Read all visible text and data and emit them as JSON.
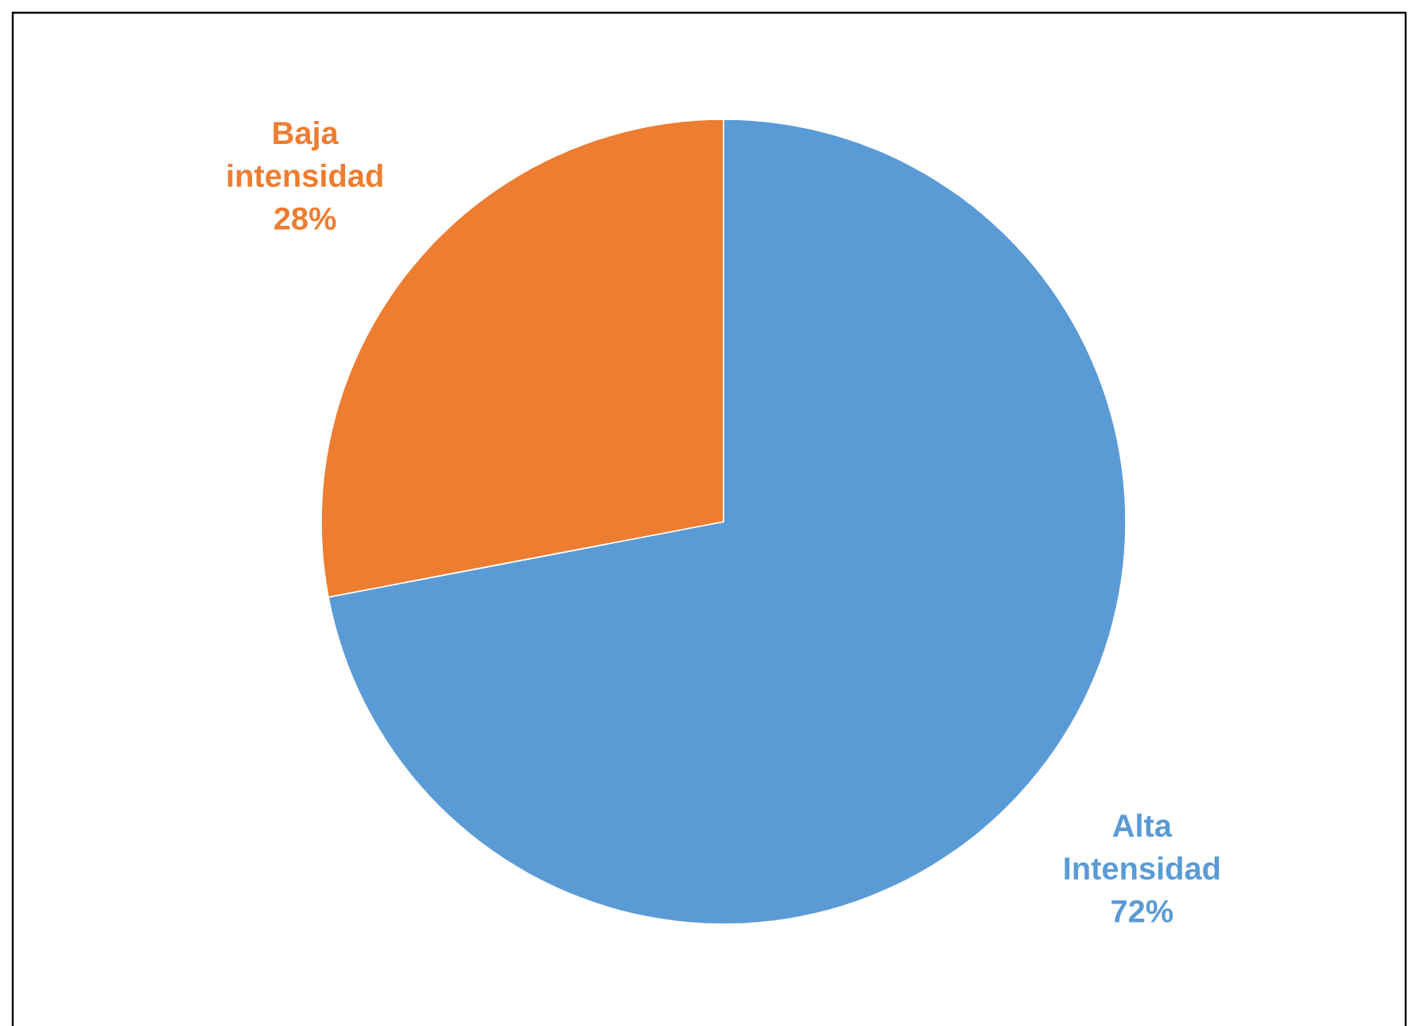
{
  "chart_data": {
    "type": "pie",
    "categories": [
      "Alta Intensidad",
      "Baja intensidad"
    ],
    "values": [
      72,
      28
    ],
    "value_labels": [
      "72%",
      "28%"
    ],
    "colors": [
      "#5b9bd5",
      "#ed7d31"
    ]
  }
}
